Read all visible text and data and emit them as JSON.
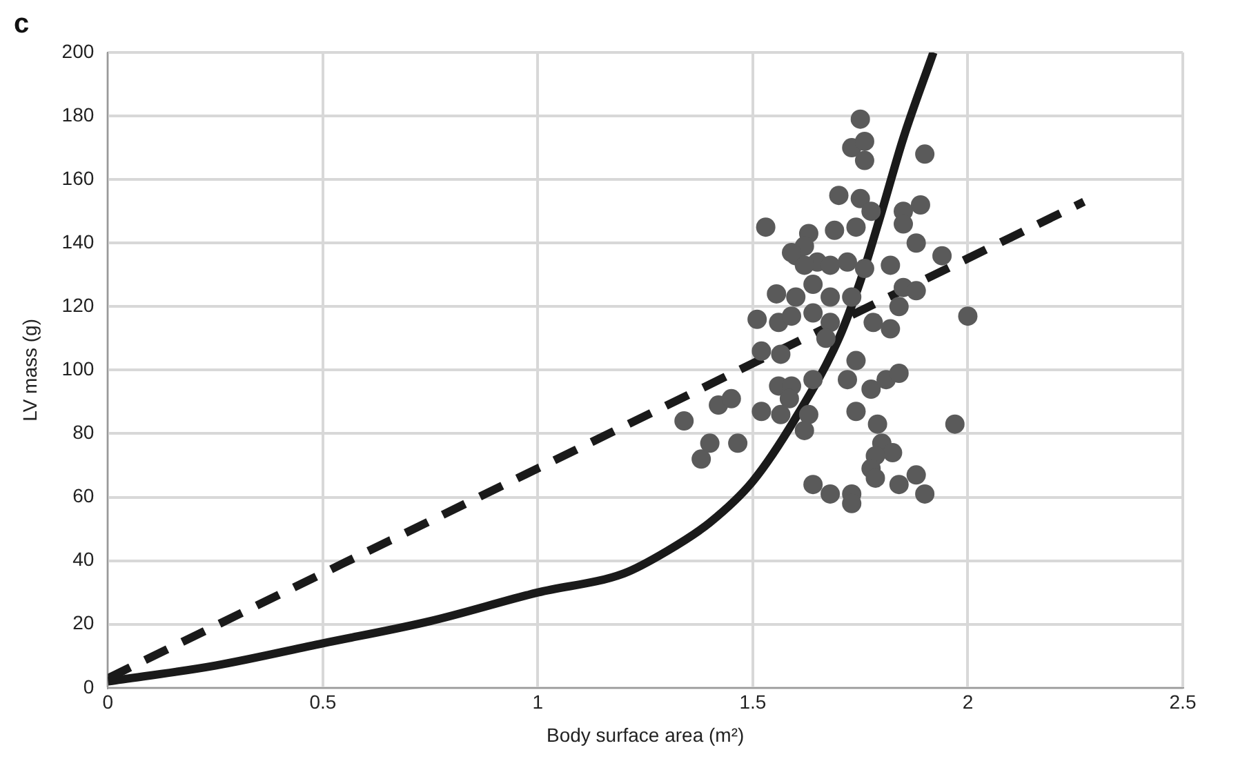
{
  "chart_data": {
    "type": "scatter",
    "title": "c",
    "xlabel": "Body surface area (m²)",
    "ylabel": "LV mass (g)",
    "xlim": [
      0,
      2.5
    ],
    "xticks": [
      0,
      0.5,
      1,
      1.5,
      2,
      2.5
    ],
    "ylim": [
      0,
      200
    ],
    "yticks": [
      0,
      20,
      40,
      60,
      80,
      100,
      120,
      140,
      160,
      180,
      200
    ],
    "grid": true,
    "legend": false,
    "series": [
      {
        "color": "#5a5a5a",
        "marker": "circle",
        "x": [
          1.53,
          1.75,
          1.73,
          1.76,
          1.76,
          1.9,
          1.7,
          1.75,
          1.775,
          1.89,
          1.85,
          1.85,
          1.74,
          1.69,
          1.63,
          1.88,
          1.6,
          1.62,
          1.65,
          1.68,
          1.72,
          1.76,
          1.62,
          1.59,
          1.82,
          1.94,
          1.555,
          1.6,
          1.64,
          1.68,
          1.73,
          1.85,
          1.88,
          1.84,
          1.51,
          1.56,
          1.59,
          1.64,
          1.68,
          1.78,
          1.82,
          2.0,
          1.52,
          1.565,
          1.67,
          1.74,
          1.56,
          1.59,
          1.585,
          1.64,
          1.72,
          1.775,
          1.81,
          1.84,
          1.52,
          1.565,
          1.63,
          1.74,
          1.79,
          1.97,
          1.34,
          1.42,
          1.45,
          1.4,
          1.38,
          1.465,
          1.62,
          1.8,
          1.825,
          1.785,
          1.775,
          1.785,
          1.64,
          1.68,
          1.73,
          1.73,
          1.84,
          1.88,
          1.9
        ],
        "values": [
          145,
          179,
          170,
          172,
          166,
          168,
          155,
          154,
          150,
          152,
          150,
          146,
          145,
          144,
          143,
          140,
          136,
          139,
          134,
          133,
          134,
          132,
          133,
          137,
          133,
          136,
          124,
          123,
          127,
          123,
          123,
          126,
          125,
          120,
          116,
          115,
          117,
          118,
          115,
          115,
          113,
          117,
          106,
          105,
          110,
          103,
          95,
          95,
          91,
          97,
          97,
          94,
          97,
          99,
          87,
          86,
          86,
          87,
          83,
          83,
          84,
          89,
          91,
          77,
          72,
          77,
          81,
          77,
          74,
          73,
          69,
          66,
          64,
          61,
          61,
          58,
          64,
          67,
          61
        ]
      },
      {
        "type": "line",
        "color": "#1a1a1a",
        "line_style": "dashed",
        "marker": "none",
        "x": [
          0,
          2.27
        ],
        "values": [
          3,
          153
        ]
      },
      {
        "type": "line",
        "color": "#1a1a1a",
        "line_style": "solid",
        "marker": "none",
        "x": [
          0,
          0.25,
          0.5,
          0.75,
          1,
          1.2,
          1.3,
          1.4,
          1.5,
          1.6,
          1.7,
          1.75,
          1.8,
          1.85,
          1.92
        ],
        "values": [
          2,
          7,
          14,
          21,
          30,
          36,
          43,
          52,
          65,
          85,
          110,
          128,
          150,
          173,
          200
        ]
      }
    ]
  }
}
